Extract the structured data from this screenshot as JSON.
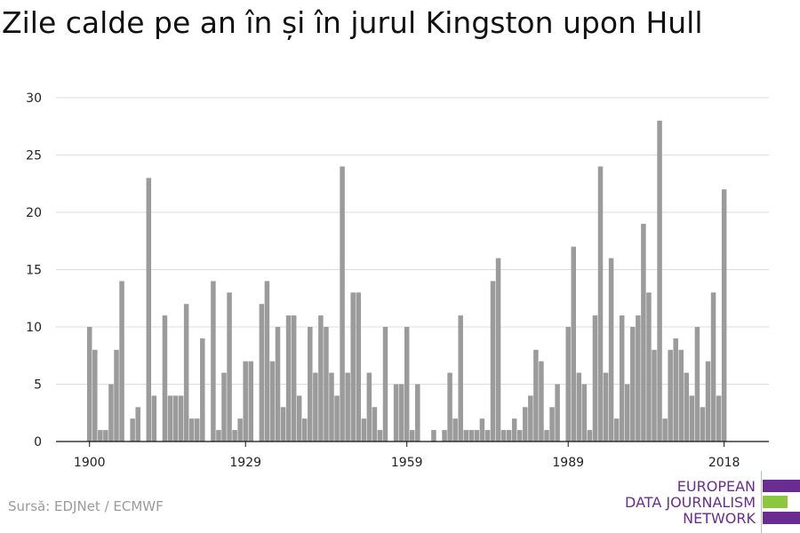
{
  "chart_data": {
    "type": "bar",
    "title": "Zile calde pe an în și în jurul Kingston upon Hull",
    "xlabel": "",
    "ylabel": "",
    "ylim": [
      0,
      30
    ],
    "yticks": [
      0,
      5,
      10,
      15,
      20,
      25,
      30
    ],
    "xticks": [
      1900,
      1929,
      1959,
      1989,
      2018
    ],
    "x": [
      1900,
      1901,
      1902,
      1903,
      1904,
      1905,
      1906,
      1907,
      1908,
      1909,
      1910,
      1911,
      1912,
      1913,
      1914,
      1915,
      1916,
      1917,
      1918,
      1919,
      1920,
      1921,
      1922,
      1923,
      1924,
      1925,
      1926,
      1927,
      1928,
      1929,
      1930,
      1931,
      1932,
      1933,
      1934,
      1935,
      1936,
      1937,
      1938,
      1939,
      1940,
      1941,
      1942,
      1943,
      1944,
      1945,
      1946,
      1947,
      1948,
      1949,
      1950,
      1951,
      1952,
      1953,
      1954,
      1955,
      1956,
      1957,
      1958,
      1959,
      1960,
      1961,
      1962,
      1963,
      1964,
      1965,
      1966,
      1967,
      1968,
      1969,
      1970,
      1971,
      1972,
      1973,
      1974,
      1975,
      1976,
      1977,
      1978,
      1979,
      1980,
      1981,
      1982,
      1983,
      1984,
      1985,
      1986,
      1987,
      1988,
      1989,
      1990,
      1991,
      1992,
      1993,
      1994,
      1995,
      1996,
      1997,
      1998,
      1999,
      2000,
      2001,
      2002,
      2003,
      2004,
      2005,
      2006,
      2007,
      2008,
      2009,
      2010,
      2011,
      2012,
      2013,
      2014,
      2015,
      2016,
      2017,
      2018
    ],
    "values": [
      10,
      8,
      1,
      1,
      5,
      8,
      14,
      0,
      2,
      3,
      0,
      23,
      4,
      0,
      11,
      4,
      4,
      4,
      12,
      2,
      2,
      9,
      0,
      14,
      1,
      6,
      13,
      1,
      2,
      7,
      7,
      0,
      12,
      14,
      7,
      10,
      3,
      11,
      11,
      4,
      2,
      10,
      6,
      11,
      10,
      6,
      4,
      24,
      6,
      13,
      13,
      2,
      6,
      3,
      1,
      10,
      0,
      5,
      5,
      10,
      1,
      5,
      0,
      0,
      1,
      0,
      1,
      6,
      2,
      11,
      1,
      1,
      1,
      2,
      1,
      14,
      16,
      1,
      1,
      2,
      1,
      3,
      4,
      8,
      7,
      1,
      3,
      5,
      0,
      10,
      17,
      6,
      5,
      1,
      11,
      24,
      6,
      16,
      2,
      11,
      5,
      10,
      11,
      19,
      13,
      8,
      28,
      2,
      8,
      9,
      8,
      6,
      4,
      10,
      3,
      7,
      13,
      4,
      22
    ],
    "bar_color": "#9b9b9b",
    "grid": true,
    "legend": "none"
  },
  "source": "Sursă: EDJNet / ECMWF",
  "logo": {
    "lines": [
      "EUROPEAN",
      "DATA JOURNALISM",
      "NETWORK"
    ],
    "colors": [
      "#6a2c91",
      "#8dc63f",
      "#6a2c91"
    ]
  }
}
